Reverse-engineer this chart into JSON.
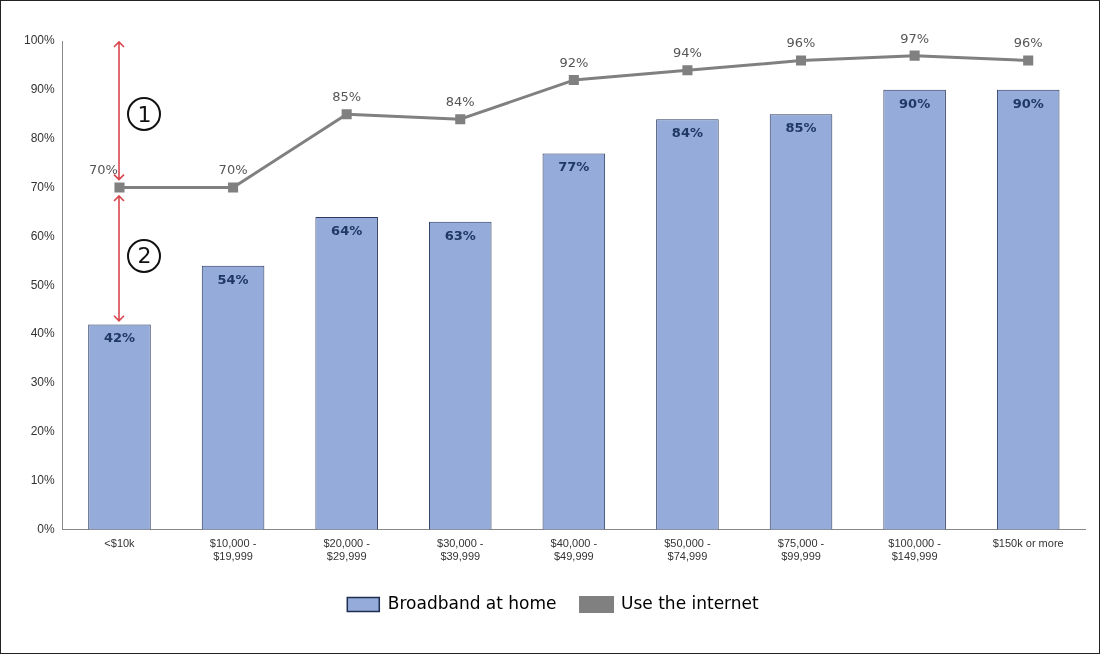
{
  "chart_data": {
    "type": "bar",
    "categories": [
      "<$10k",
      "$10,000 - $19,999",
      "$20,000 - $29,999",
      "$30,000 - $39,999",
      "$40,000 - $49,999",
      "$50,000 - $74,999",
      "$75,000 - $99,999",
      "$100,000 - $149,999",
      "$150k or more"
    ],
    "series": [
      {
        "name": "Broadband at home",
        "color": "#95abd9",
        "values": [
          42,
          54,
          64,
          63,
          77,
          84,
          85,
          90,
          90
        ],
        "value_labels": [
          "42%",
          "54%",
          "64%",
          "63%",
          "77%",
          "84%",
          "85%",
          "90%",
          "90%"
        ]
      },
      {
        "name": "Use the internet",
        "type": "line",
        "color": "#808080",
        "values": [
          70,
          70,
          85,
          84,
          92,
          94,
          96,
          97,
          96
        ],
        "value_labels": [
          "70%",
          "70%",
          "85%",
          "84%",
          "92%",
          "94%",
          "96%",
          "97%",
          "96%"
        ]
      }
    ],
    "ylim": [
      0,
      100
    ],
    "yticks": [
      {
        "value": 0,
        "label": "0%"
      },
      {
        "value": 10,
        "label": "10%"
      },
      {
        "value": 20,
        "label": "20%"
      },
      {
        "value": 30,
        "label": "30%"
      },
      {
        "value": 40,
        "label": "40%"
      },
      {
        "value": 50,
        "label": "50%"
      },
      {
        "value": 60,
        "label": "60%"
      },
      {
        "value": 70,
        "label": "70%"
      },
      {
        "value": 80,
        "label": "80%"
      },
      {
        "value": 90,
        "label": "90%"
      },
      {
        "value": 100,
        "label": "100%"
      }
    ],
    "annotations": [
      "1",
      "2"
    ],
    "grid": false,
    "legend": "bottom",
    "marker": "square",
    "line_style": "solid"
  }
}
